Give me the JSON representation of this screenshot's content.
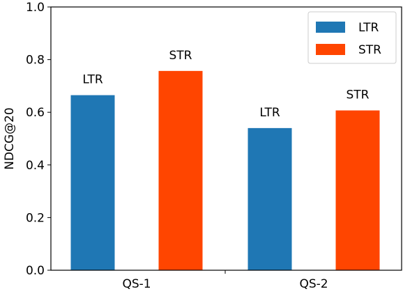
{
  "chart_data": {
    "type": "bar",
    "title": "",
    "xlabel": "",
    "ylabel": "NDCG@20",
    "ylim": [
      0,
      1.0
    ],
    "yticks": [
      "0.0",
      "0.2",
      "0.4",
      "0.6",
      "0.8",
      "1.0"
    ],
    "categories": [
      "QS-1",
      "QS-2"
    ],
    "series": [
      {
        "name": "LTR",
        "color": "#1f77b4",
        "values": [
          0.665,
          0.54
        ],
        "bar_labels": [
          "LTR",
          "LTR"
        ]
      },
      {
        "name": "STR",
        "color": "#ff4500",
        "values": [
          0.757,
          0.607
        ],
        "bar_labels": [
          "STR",
          "STR"
        ]
      }
    ],
    "legend": {
      "position": "top-right",
      "entries": [
        "LTR",
        "STR"
      ]
    },
    "grid": false
  }
}
